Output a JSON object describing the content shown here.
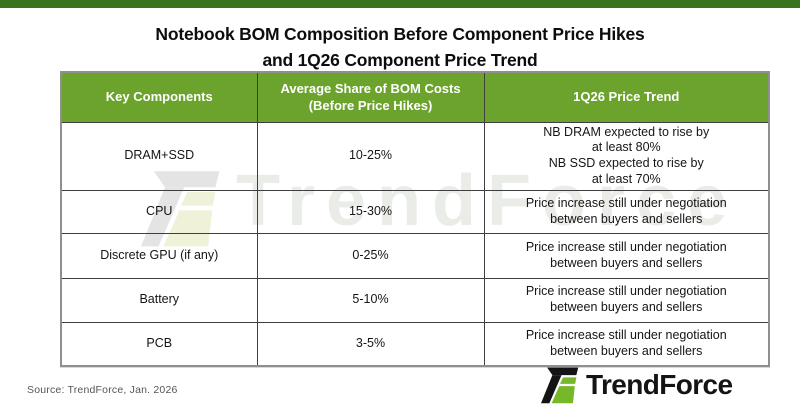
{
  "colors": {
    "top_bar_green": "#3a731e",
    "header_green": "#6ca32d",
    "logo_green": "#76b82a",
    "logo_black": "#141414"
  },
  "title": {
    "line1": "Notebook BOM Composition Before Component Price Hikes",
    "line2": "and 1Q26 Component Price Trend"
  },
  "table": {
    "headers": [
      {
        "lines": [
          "Key Components"
        ]
      },
      {
        "lines": [
          "Average Share of BOM Costs",
          "(Before Price Hikes)"
        ]
      },
      {
        "lines": [
          "1Q26 Price Trend"
        ]
      }
    ],
    "rows": [
      {
        "component": "DRAM+SSD",
        "share": "10-25%",
        "trend": [
          "NB DRAM expected to rise by",
          "at least 80%",
          "NB SSD expected to rise by",
          "at least 70%"
        ]
      },
      {
        "component": "CPU",
        "share": "15-30%",
        "trend": [
          "Price increase still under negotiation",
          "between buyers and sellers"
        ]
      },
      {
        "component": "Discrete GPU (if any)",
        "share": "0-25%",
        "trend": [
          "Price increase still under negotiation",
          "between buyers and sellers"
        ]
      },
      {
        "component": "Battery",
        "share": "5-10%",
        "trend": [
          "Price increase still under negotiation",
          "between buyers and sellers"
        ]
      },
      {
        "component": "PCB",
        "share": "3-5%",
        "trend": [
          "Price increase still under negotiation",
          "between buyers and sellers"
        ]
      }
    ]
  },
  "watermark": {
    "text": "TrendForce"
  },
  "footer": {
    "source": "Source: TrendForce,  Jan. 2026",
    "brand": "TrendForce"
  },
  "chart_data": {
    "type": "table",
    "title": "Notebook BOM Composition Before Component Price Hikes and 1Q26 Component Price Trend",
    "columns": [
      "Key Components",
      "Average Share of BOM Costs (Before Price Hikes)",
      "1Q26 Price Trend"
    ],
    "rows": [
      [
        "DRAM+SSD",
        "10-25%",
        "NB DRAM expected to rise by at least 80%; NB SSD expected to rise by at least 70%"
      ],
      [
        "CPU",
        "15-30%",
        "Price increase still under negotiation between buyers and sellers"
      ],
      [
        "Discrete GPU (if any)",
        "0-25%",
        "Price increase still under negotiation between buyers and sellers"
      ],
      [
        "Battery",
        "5-10%",
        "Price increase still under negotiation between buyers and sellers"
      ],
      [
        "PCB",
        "3-5%",
        "Price increase still under negotiation between buyers and sellers"
      ]
    ],
    "source": "Source: TrendForce,  Jan. 2026"
  }
}
